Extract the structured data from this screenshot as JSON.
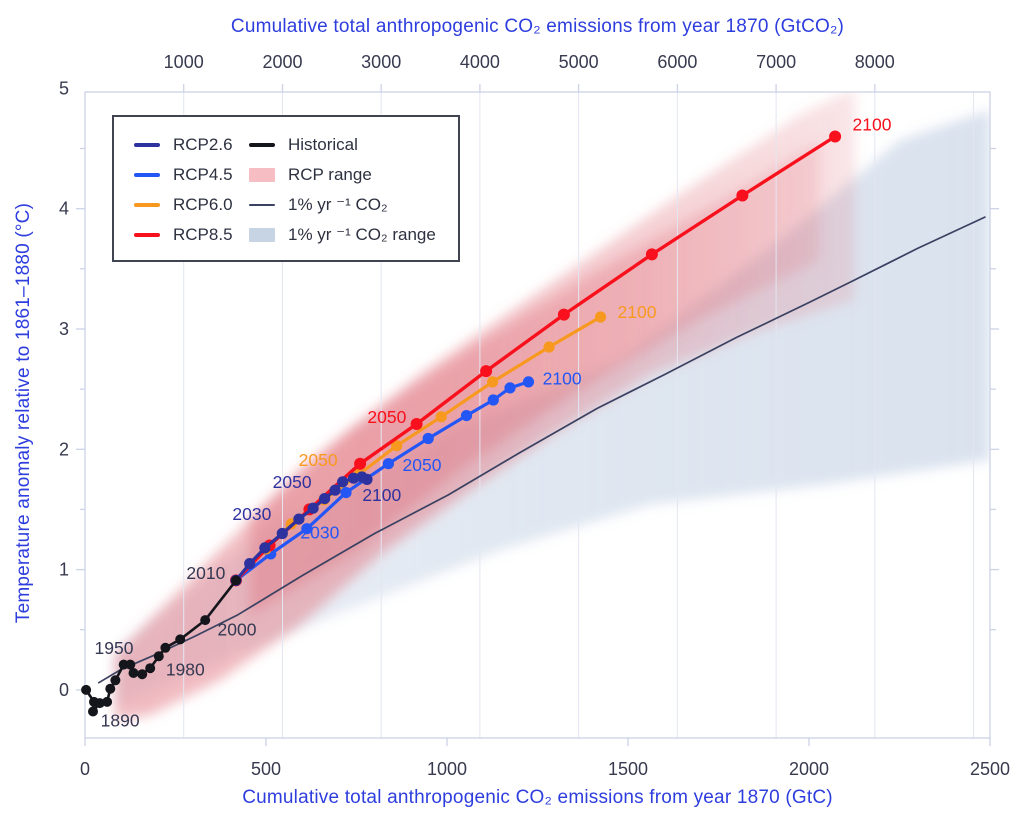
{
  "palette": {
    "navy": "#2e329f",
    "blue": "#2456f5",
    "orange": "#f8991f",
    "red": "#f8101d",
    "black": "#15151c",
    "slate": "#343852",
    "onepct": "#3a4161",
    "pink_patch": "#f6bdc2",
    "gray_patch": "#c6d4e3",
    "axis_blue": "#2e3ede",
    "tick_text": "#383b4f",
    "spine": "#ccd3e5",
    "grid": "#e3e7f2"
  },
  "legend": {
    "items": [
      {
        "label": "RCP2.6",
        "type": "line",
        "color": "#2e329f"
      },
      {
        "label": "RCP4.5",
        "type": "line",
        "color": "#2456f5"
      },
      {
        "label": "RCP6.0",
        "type": "line",
        "color": "#f8991f"
      },
      {
        "label": "RCP8.5",
        "type": "line",
        "color": "#f8101d"
      },
      {
        "label": "Historical",
        "type": "line",
        "color": "#15151c"
      },
      {
        "label": "RCP range",
        "type": "patch",
        "color": "#f6bdc2"
      },
      {
        "label": "1% yr ⁻¹ CO₂",
        "type": "thin",
        "color": "#3a4161"
      },
      {
        "label": "1% yr ⁻¹ CO₂ range",
        "type": "patch",
        "color": "#c6d4e3"
      }
    ]
  },
  "chart_data": {
    "type": "line",
    "title": "",
    "xlabel_top": "Cumulative total anthropogenic CO₂ emissions from year 1870 (GtCO₂)",
    "xlabel_bottom": "Cumulative total anthropogenic CO₂ emissions from year 1870 (GtC)",
    "ylabel": "Temperature anomaly relative to 1861–1880 (°C)",
    "x_axis_bottom": {
      "unit": "GtC",
      "range": [
        0,
        2500
      ],
      "ticks": [
        0,
        500,
        1000,
        1500,
        2000,
        2500
      ]
    },
    "x_axis_top": {
      "unit": "GtCO2",
      "ticks": [
        1000,
        2000,
        3000,
        4000,
        5000,
        6000,
        7000,
        8000
      ],
      "gridlines": [
        1000,
        2000,
        3000,
        4000,
        5000,
        6000,
        7000,
        8000,
        9000
      ],
      "gtc_per_gtco2": 0.272727
    },
    "y_axis": {
      "unit": "degC",
      "range": [
        -0.4,
        4.97
      ],
      "ticks": [
        0,
        1,
        2,
        3,
        4,
        5
      ],
      "minor_step": 0.5
    },
    "series": [
      {
        "name": "1% yr-1 CO2",
        "color_key": "onepct",
        "width": 1.7,
        "markers": false,
        "x": [
          38,
          100,
          200,
          300,
          420,
          600,
          800,
          1003,
          1200,
          1415,
          1600,
          1800,
          2000,
          2121,
          2300,
          2486
        ],
        "y": [
          0.06,
          0.17,
          0.3,
          0.44,
          0.62,
          0.95,
          1.3,
          1.62,
          1.97,
          2.34,
          2.62,
          2.93,
          3.22,
          3.4,
          3.67,
          3.93
        ]
      },
      {
        "name": "RCP4.5",
        "color_key": "blue",
        "width": 3.2,
        "markers": true,
        "r": 5.6,
        "x": [
          417,
          513,
          613,
          721,
          838,
          948,
          1054,
          1128,
          1174,
          1225
        ],
        "y": [
          0.91,
          1.13,
          1.34,
          1.64,
          1.88,
          2.09,
          2.28,
          2.41,
          2.51,
          2.56
        ]
      },
      {
        "name": "RCP6.0",
        "color_key": "orange",
        "width": 3.2,
        "markers": true,
        "r": 5.6,
        "x": [
          417,
          500,
          570,
          660,
          756,
          861,
          984,
          1126,
          1282,
          1424
        ],
        "y": [
          0.91,
          1.17,
          1.38,
          1.58,
          1.79,
          2.03,
          2.27,
          2.56,
          2.85,
          3.1
        ]
      },
      {
        "name": "RCP8.5",
        "color_key": "red",
        "width": 3.4,
        "markers": true,
        "r": 6.0,
        "x": [
          417,
          510,
          620,
          760,
          916,
          1108,
          1323,
          1566,
          1816,
          2072
        ],
        "y": [
          0.91,
          1.2,
          1.5,
          1.88,
          2.21,
          2.65,
          3.12,
          3.62,
          4.11,
          4.6
        ]
      },
      {
        "name": "RCP2.6",
        "color_key": "navy",
        "width": 3.2,
        "markers": true,
        "r": 5.6,
        "x": [
          417,
          455,
          497,
          545,
          591,
          630,
          662,
          691,
          712,
          742,
          765,
          779
        ],
        "y": [
          0.91,
          1.05,
          1.18,
          1.3,
          1.42,
          1.51,
          1.59,
          1.66,
          1.73,
          1.76,
          1.77,
          1.75
        ]
      },
      {
        "name": "Historical",
        "color_key": "black",
        "width": 2.6,
        "markers": true,
        "r": 5.0,
        "x": [
          3,
          25,
          22,
          41,
          61,
          70,
          84,
          107,
          125,
          134,
          158,
          180,
          204,
          222,
          263,
          332,
          417
        ],
        "y": [
          0.0,
          -0.1,
          -0.18,
          -0.11,
          -0.1,
          0.01,
          0.08,
          0.21,
          0.21,
          0.14,
          0.13,
          0.18,
          0.28,
          0.35,
          0.42,
          0.58,
          0.91
        ]
      }
    ],
    "bands": [
      {
        "name": "one-percent-range",
        "gradient": "gray",
        "points": [
          [
            83,
            0.33
          ],
          [
            539,
            1.41
          ],
          [
            1008,
            2.16
          ],
          [
            1478,
            2.74
          ],
          [
            1920,
            3.74
          ],
          [
            2251,
            4.57
          ],
          [
            2500,
            4.82
          ],
          [
            2500,
            1.91
          ],
          [
            2030,
            1.7
          ],
          [
            1561,
            1.54
          ],
          [
            1146,
            1.16
          ],
          [
            732,
            0.67
          ],
          [
            373,
            0.25
          ],
          [
            124,
            -0.08
          ],
          [
            83,
            -0.13
          ]
        ]
      },
      {
        "name": "rcp-range",
        "gradient": "pink",
        "points": [
          [
            83,
            0.29
          ],
          [
            318,
            1.0
          ],
          [
            594,
            1.83
          ],
          [
            925,
            2.62
          ],
          [
            1284,
            3.37
          ],
          [
            1644,
            4.12
          ],
          [
            1975,
            4.78
          ],
          [
            2127,
            5.0
          ],
          [
            2127,
            3.24
          ],
          [
            1865,
            2.99
          ],
          [
            1561,
            2.62
          ],
          [
            1312,
            2.16
          ],
          [
            1064,
            1.66
          ],
          [
            815,
            1.12
          ],
          [
            594,
            0.54
          ],
          [
            373,
            0.08
          ],
          [
            180,
            -0.21
          ],
          [
            83,
            -0.25
          ]
        ]
      },
      {
        "name": "rcp-range-core",
        "gradient": "core",
        "points": [
          [
            456,
            1.41
          ],
          [
            732,
            2.16
          ],
          [
            1064,
            2.83
          ],
          [
            1423,
            3.49
          ],
          [
            1754,
            4.07
          ],
          [
            2030,
            4.57
          ],
          [
            2030,
            3.57
          ],
          [
            1699,
            3.08
          ],
          [
            1367,
            2.49
          ],
          [
            1036,
            1.83
          ],
          [
            732,
            1.12
          ],
          [
            456,
            0.62
          ]
        ]
      }
    ],
    "annotations": [
      {
        "text": "1890",
        "color_key": "slate",
        "x": 97,
        "y": -0.255
      },
      {
        "text": "1950",
        "color_key": "slate",
        "x": 80,
        "y": 0.35
      },
      {
        "text": "1980",
        "color_key": "slate",
        "x": 277,
        "y": 0.17
      },
      {
        "text": "2000",
        "color_key": "slate",
        "x": 420,
        "y": 0.5
      },
      {
        "text": "2010",
        "color_key": "slate",
        "x": 334,
        "y": 0.97
      },
      {
        "text": "2030",
        "color_key": "navy",
        "x": 461,
        "y": 1.46
      },
      {
        "text": "2050",
        "color_key": "navy",
        "x": 572,
        "y": 1.73
      },
      {
        "text": "2100",
        "color_key": "navy",
        "x": 820,
        "y": 1.62
      },
      {
        "text": "2030",
        "color_key": "blue",
        "x": 649,
        "y": 1.31
      },
      {
        "text": "2050",
        "color_key": "blue",
        "x": 931,
        "y": 1.87
      },
      {
        "text": "2100",
        "color_key": "blue",
        "x": 1318,
        "y": 2.59
      },
      {
        "text": "2050",
        "color_key": "orange",
        "x": 644,
        "y": 1.91
      },
      {
        "text": "2100",
        "color_key": "orange",
        "x": 1525,
        "y": 3.14
      },
      {
        "text": "2050",
        "color_key": "red",
        "x": 834,
        "y": 2.27
      },
      {
        "text": "2100",
        "color_key": "red",
        "x": 2174,
        "y": 4.7
      }
    ]
  }
}
